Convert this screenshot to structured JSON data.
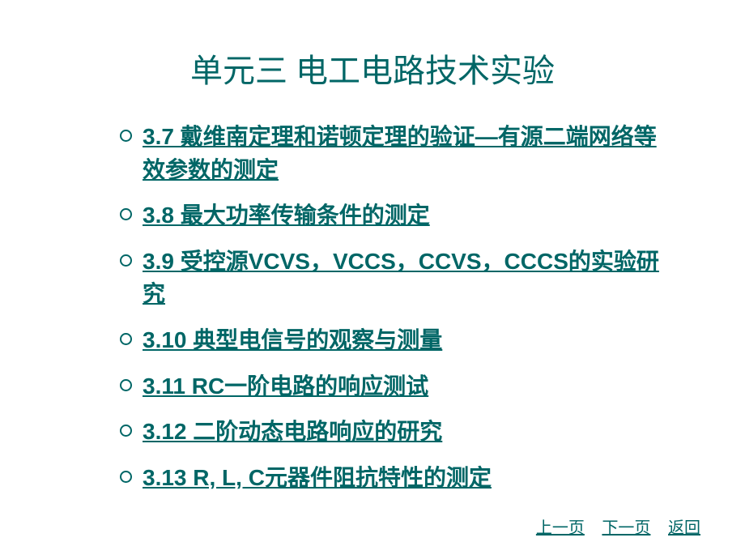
{
  "title": "单元三   电工电路技术实验",
  "colors": {
    "text": "#006666",
    "background": "#ffffff",
    "bullet_border": "#006666"
  },
  "items": [
    {
      "label": "3.7 戴维南定理和诺顿定理的验证—有源二端网络等效参数的测定"
    },
    {
      "label": "3.8 最大功率传输条件的测定"
    },
    {
      "label": "3.9 受控源VCVS，VCCS，CCVS，CCCS的实验研究"
    },
    {
      "label": "3.10 典型电信号的观察与测量"
    },
    {
      "label": "3.11 RC一阶电路的响应测试"
    },
    {
      "label": "3.12 二阶动态电路响应的研究"
    },
    {
      "label": "3.13 R, L, C元器件阻抗特性的测定"
    }
  ],
  "nav": {
    "prev": "上一页",
    "next": "下一页",
    "back": "返回"
  },
  "typography": {
    "title_fontsize": 40,
    "item_fontsize": 28,
    "nav_fontsize": 20,
    "item_fontweight": "bold",
    "item_underline": true
  }
}
